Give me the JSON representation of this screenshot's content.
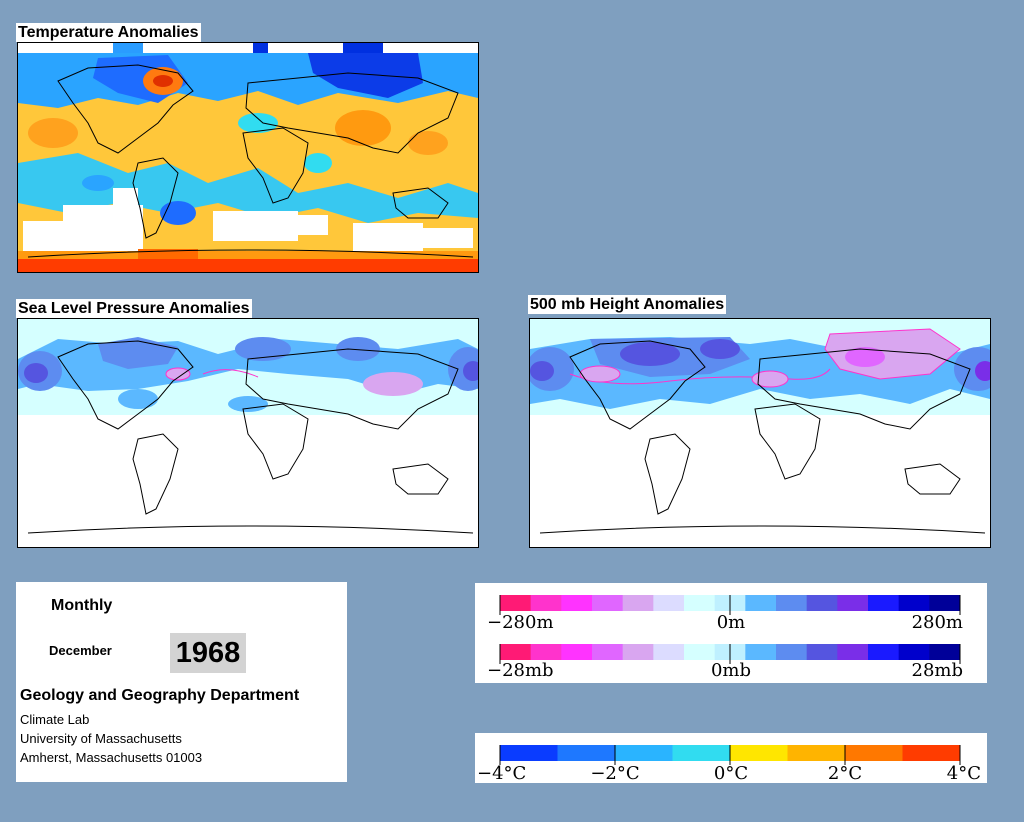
{
  "panels": {
    "temperature_title": "Temperature Anomalies",
    "slp_title": "Sea Level Pressure Anomalies",
    "height_title": "500 mb Height Anomalies"
  },
  "info": {
    "frequency": "Monthly",
    "month": "December",
    "year": "1968",
    "department": "Geology and Geography Department",
    "lab": "Climate Lab",
    "university": "University of Massachusetts",
    "address": "Amherst, Massachusetts 01003"
  },
  "legends": {
    "height": {
      "labels": [
        "−280m",
        "0m",
        "280m"
      ]
    },
    "pressure": {
      "labels": [
        "−28mb",
        "0mb",
        "28mb"
      ]
    },
    "temperature": {
      "labels": [
        "−4°C",
        "−2°C",
        "0°C",
        "2°C",
        "4°C"
      ]
    }
  },
  "colors": {
    "background": "#7f9fbf",
    "anomaly_scale": [
      "#ff1a75",
      "#ff33cc",
      "#ff33ff",
      "#e066ff",
      "#d9a6f0",
      "#dcdcff",
      "#d5ffff",
      "#bff0ff",
      "#5bb8ff",
      "#5d8cf0",
      "#5555e0",
      "#7a2ee8",
      "#1a1aff",
      "#0000cc",
      "#000099"
    ],
    "temperature_scale": [
      "#0a3cff",
      "#1e78ff",
      "#2ab4ff",
      "#31dcf0",
      "#ffe600",
      "#ffb400",
      "#ff7800",
      "#ff3c00"
    ]
  }
}
